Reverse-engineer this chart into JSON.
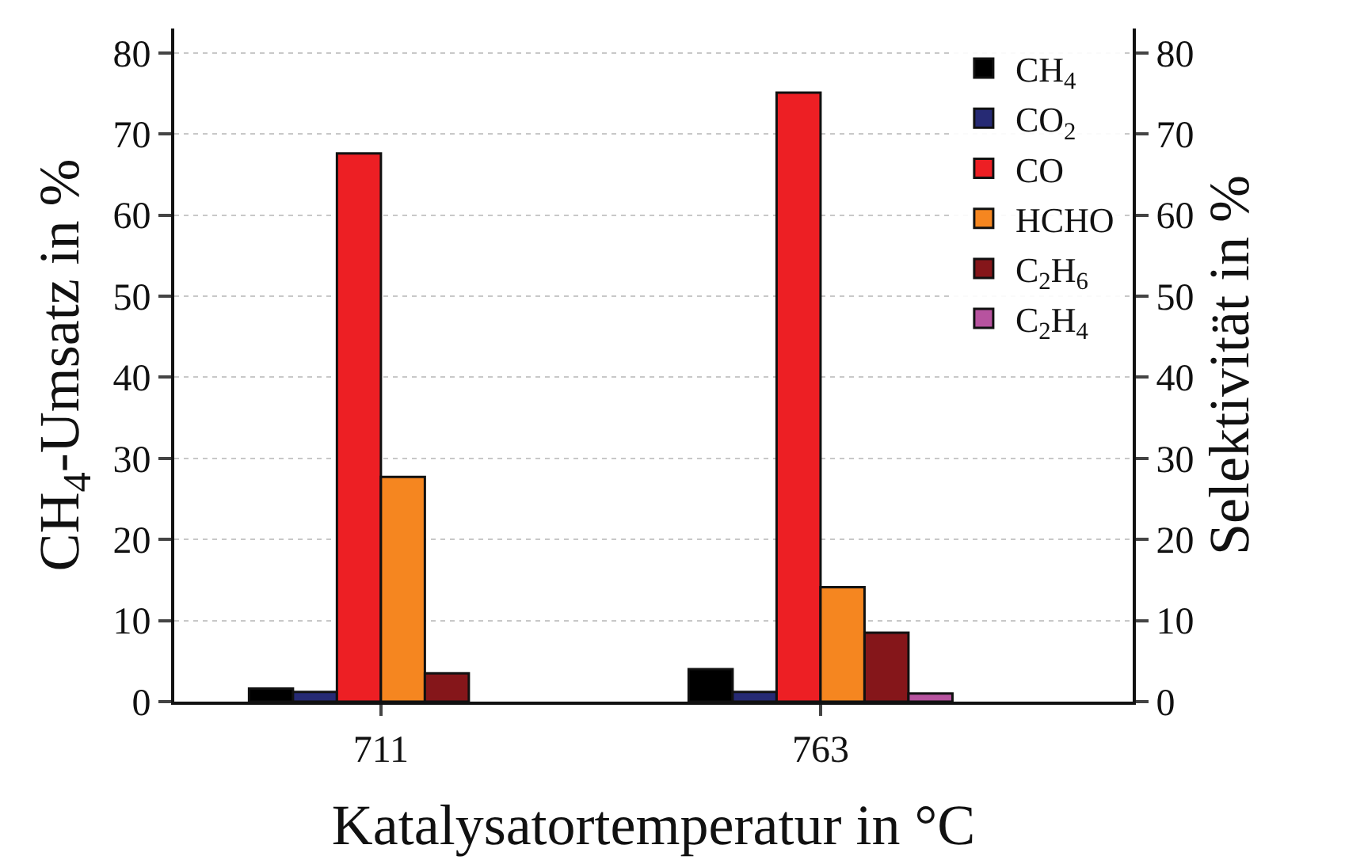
{
  "chart_data": {
    "type": "bar",
    "xlabel": "Katalysatortemperatur in °C",
    "ylabel": "CH$_{4}$-Umsatz in %",
    "y2label": "Selektivität in %",
    "categories": [
      "711",
      "763"
    ],
    "series": [
      {
        "name": "CH$_{4}$",
        "color": "#000000",
        "values": [
          1.6,
          4.0
        ]
      },
      {
        "name": "CO$_{2}$",
        "color": "#262a74",
        "values": [
          1.2,
          1.2
        ],
        "axis": "y2"
      },
      {
        "name": "CO",
        "color": "#ed1f24",
        "values": [
          67.6,
          75.1
        ],
        "axis": "y2"
      },
      {
        "name": "HCHO",
        "color": "#f58620",
        "values": [
          27.7,
          14.1
        ],
        "axis": "y2"
      },
      {
        "name": "C$_{2}$H$_{6}$",
        "color": "#85161a",
        "values": [
          3.5,
          8.5
        ],
        "axis": "y2"
      },
      {
        "name": "C$_{2}$H$_{4}$",
        "color": "#b7539f",
        "values": [
          null,
          1.0
        ],
        "axis": "y2"
      }
    ],
    "ylim": [
      0,
      83
    ],
    "yticks": [
      0,
      10,
      20,
      30,
      40,
      50,
      60,
      70,
      80
    ],
    "y2lim": [
      0,
      83
    ],
    "y2ticks": [
      0,
      10,
      20,
      30,
      40,
      50,
      60,
      70,
      80
    ],
    "grid": "y",
    "legend": "top right"
  }
}
